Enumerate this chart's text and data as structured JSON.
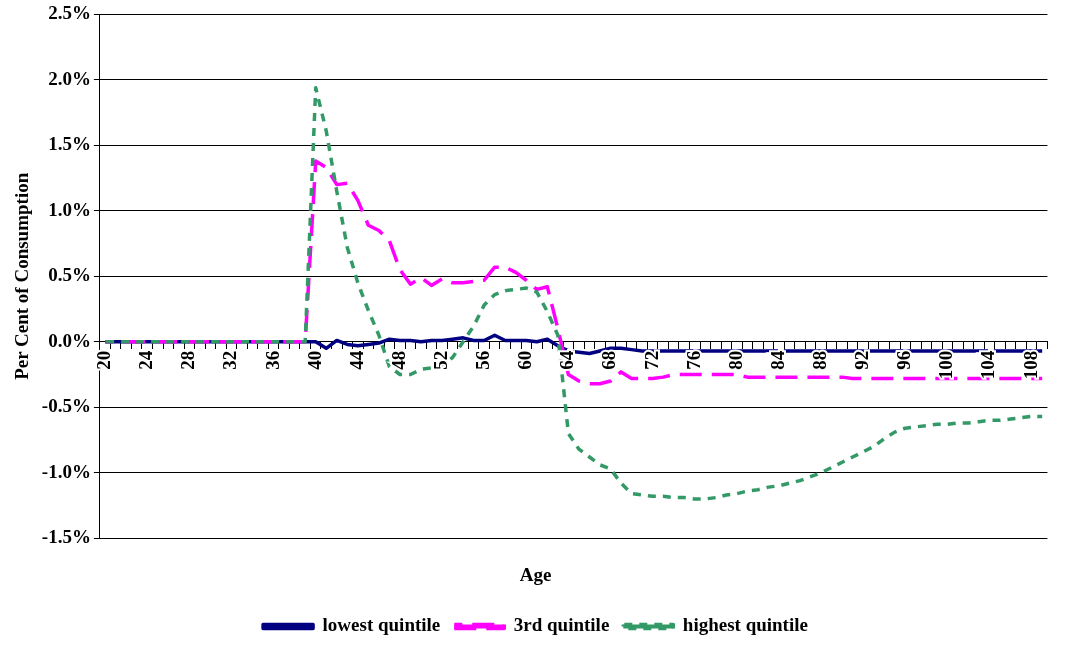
{
  "chart_data": {
    "type": "line",
    "xlabel": "Age",
    "ylabel": "Per Cent of Consumption",
    "categories": [
      "20",
      null,
      null,
      null,
      "24",
      null,
      null,
      null,
      "28",
      null,
      null,
      null,
      "32",
      null,
      null,
      null,
      "36",
      null,
      null,
      null,
      "40",
      null,
      null,
      null,
      "44",
      null,
      null,
      null,
      "48",
      null,
      null,
      null,
      "52",
      null,
      null,
      null,
      "56",
      null,
      null,
      null,
      "60",
      null,
      null,
      null,
      "64",
      null,
      null,
      null,
      "68",
      null,
      null,
      null,
      "72",
      null,
      null,
      null,
      "76",
      null,
      null,
      null,
      "80",
      null,
      null,
      null,
      "84",
      null,
      null,
      null,
      "88",
      null,
      null,
      null,
      "92",
      null,
      null,
      null,
      "96",
      null,
      null,
      null,
      "100",
      null,
      null,
      null,
      "104",
      null,
      null,
      null,
      "108",
      null
    ],
    "series": [
      {
        "name": "lowest quintile",
        "color": "#000080",
        "line_style": "solid",
        "values": [
          0,
          0,
          0,
          0,
          0,
          0,
          0,
          0,
          0,
          0,
          0,
          0,
          0,
          0,
          0,
          0,
          0,
          0,
          0,
          0,
          0,
          -0.05,
          0.01,
          -0.02,
          -0.03,
          -0.02,
          -0.01,
          0.02,
          0.01,
          0.01,
          0,
          0.01,
          0.01,
          0.02,
          0.03,
          0.01,
          0.01,
          0.05,
          0.01,
          0.01,
          0.01,
          0,
          0.02,
          -0.03,
          -0.07,
          -0.08,
          -0.09,
          -0.07,
          -0.05,
          -0.05,
          -0.06,
          -0.07,
          -0.07,
          -0.07,
          -0.07,
          -0.07,
          -0.07,
          -0.07,
          -0.07,
          -0.07,
          -0.07,
          -0.07,
          -0.07,
          -0.07,
          -0.07,
          -0.07,
          -0.07,
          -0.07,
          -0.07,
          -0.07,
          -0.07,
          -0.07,
          -0.07,
          -0.07,
          -0.07,
          -0.07,
          -0.07,
          -0.07,
          -0.07,
          -0.07,
          -0.07,
          -0.07,
          -0.07,
          -0.07,
          -0.07,
          -0.07,
          -0.07,
          -0.07,
          -0.07,
          -0.07
        ]
      },
      {
        "name": "3rd quintile",
        "color": "#ff00ff",
        "line_style": "dashed",
        "values": [
          0,
          0,
          0,
          0,
          0,
          0,
          0,
          0,
          0,
          0,
          0,
          0,
          0,
          0,
          0,
          0,
          0,
          0,
          0,
          0,
          1.38,
          1.33,
          1.2,
          1.21,
          1.08,
          0.89,
          0.85,
          0.77,
          0.55,
          0.44,
          0.49,
          0.43,
          0.48,
          0.45,
          0.45,
          0.46,
          0.47,
          0.57,
          0.57,
          0.53,
          0.47,
          0.4,
          0.42,
          0.1,
          -0.25,
          -0.3,
          -0.32,
          -0.32,
          -0.3,
          -0.23,
          -0.28,
          -0.28,
          -0.28,
          -0.27,
          -0.25,
          -0.25,
          -0.25,
          -0.25,
          -0.25,
          -0.25,
          -0.25,
          -0.27,
          -0.27,
          -0.27,
          -0.27,
          -0.27,
          -0.27,
          -0.27,
          -0.27,
          -0.27,
          -0.27,
          -0.28,
          -0.28,
          -0.28,
          -0.28,
          -0.28,
          -0.28,
          -0.28,
          -0.28,
          -0.28,
          -0.28,
          -0.28,
          -0.28,
          -0.28,
          -0.28,
          -0.28,
          -0.28,
          -0.28,
          -0.28,
          -0.28
        ]
      },
      {
        "name": "highest quintile",
        "color": "#339966",
        "line_style": "dotted",
        "values": [
          0,
          0,
          0,
          0,
          0,
          0,
          0,
          0,
          0,
          0,
          0,
          0,
          0,
          0,
          0,
          0,
          0,
          0,
          0,
          0,
          1.94,
          1.61,
          1.15,
          0.72,
          0.45,
          0.24,
          0.05,
          -0.19,
          -0.25,
          -0.25,
          -0.21,
          -0.2,
          -0.18,
          -0.12,
          0,
          0.12,
          0.28,
          0.36,
          0.39,
          0.4,
          0.41,
          0.38,
          0.23,
          0.05,
          -0.7,
          -0.82,
          -0.88,
          -0.94,
          -0.97,
          -1.08,
          -1.16,
          -1.17,
          -1.18,
          -1.18,
          -1.19,
          -1.19,
          -1.2,
          -1.2,
          -1.19,
          -1.17,
          -1.16,
          -1.14,
          -1.13,
          -1.11,
          -1.1,
          -1.08,
          -1.06,
          -1.03,
          -1,
          -0.96,
          -0.92,
          -0.88,
          -0.84,
          -0.8,
          -0.74,
          -0.69,
          -0.66,
          -0.65,
          -0.64,
          -0.63,
          -0.63,
          -0.62,
          -0.62,
          -0.61,
          -0.6,
          -0.6,
          -0.59,
          -0.58,
          -0.57,
          -0.57
        ]
      }
    ],
    "ylim": [
      -1.5,
      2.5
    ],
    "yticks": [
      {
        "value": -1.5,
        "label": "-1.5%"
      },
      {
        "value": -1,
        "label": "-1.0%"
      },
      {
        "value": -0.5,
        "label": "-0.5%"
      },
      {
        "value": 0,
        "label": "0.0%"
      },
      {
        "value": 0.5,
        "label": "0.5%"
      },
      {
        "value": 1,
        "label": "1.0%"
      },
      {
        "value": 1.5,
        "label": "1.5%"
      },
      {
        "value": 2,
        "label": "2.0%"
      },
      {
        "value": 2.5,
        "label": "2.5%"
      }
    ],
    "grid": "y",
    "legend": "bottom",
    "marker": "none"
  }
}
